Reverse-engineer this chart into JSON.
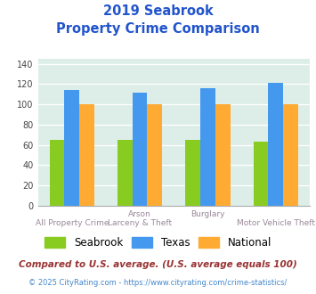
{
  "title_line1": "2019 Seabrook",
  "title_line2": "Property Crime Comparison",
  "groups": [
    {
      "name": "All Property Crime",
      "seabrook": 65,
      "texas": 114,
      "national": 100
    },
    {
      "name": "Arson / Larceny & Theft",
      "seabrook": 65,
      "texas": 112,
      "national": 100
    },
    {
      "name": "Burglary",
      "seabrook": 65,
      "texas": 116,
      "national": 100
    },
    {
      "name": "Motor Vehicle Theft",
      "seabrook": 63,
      "texas": 121,
      "national": 100
    }
  ],
  "x_labels_top": [
    "",
    "Arson",
    "Burglary",
    ""
  ],
  "x_labels_bottom": [
    "All Property Crime",
    "Larceny & Theft",
    "",
    "Motor Vehicle Theft"
  ],
  "seabrook_color": "#88cc22",
  "texas_color": "#4499ee",
  "national_color": "#ffaa33",
  "plot_bg": "#ddeee8",
  "ylim": [
    0,
    145
  ],
  "yticks": [
    0,
    20,
    40,
    60,
    80,
    100,
    120,
    140
  ],
  "legend_labels": [
    "Seabrook",
    "Texas",
    "National"
  ],
  "footnote1": "Compared to U.S. average. (U.S. average equals 100)",
  "footnote2": "© 2025 CityRating.com - https://www.cityrating.com/crime-statistics/",
  "title_color": "#2255cc",
  "footnote1_color": "#993333",
  "footnote2_color": "#4488cc"
}
